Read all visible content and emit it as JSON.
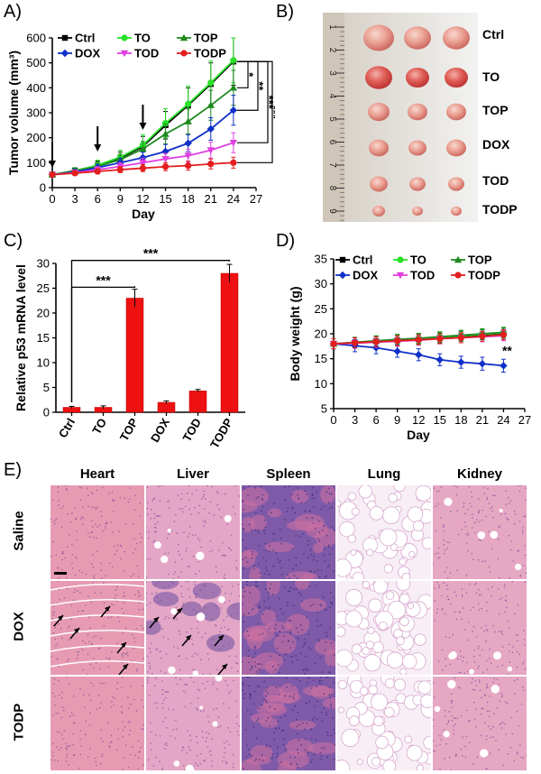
{
  "panel_labels": {
    "a": "A)",
    "b": "B)",
    "c": "C)",
    "d": "D)",
    "e": "E)"
  },
  "colors": {
    "Ctrl": "#000000",
    "TO": "#27e027",
    "TOP": "#1f8a1f",
    "DOX": "#1030c8",
    "TOD": "#e040e0",
    "TODP": "#e21e1e",
    "bar": "#ee1111"
  },
  "chart_data": [
    {
      "type": "line",
      "ylabel": "Tumor volume (mm³)",
      "xlabel": "Day",
      "x": [
        0,
        3,
        6,
        9,
        12,
        15,
        18,
        21,
        24
      ],
      "xticks": [
        "0",
        "3",
        "6",
        "9",
        "12",
        "15",
        "18",
        "21",
        "24",
        "27"
      ],
      "xlim": [
        0,
        27
      ],
      "yticks": [
        "0",
        "100",
        "200",
        "300",
        "400",
        "500",
        "600"
      ],
      "ylim": [
        0,
        600
      ],
      "legend": [
        "Ctrl",
        "TO",
        "TOP",
        "DOX",
        "TOD",
        "TODP"
      ],
      "series": [
        {
          "name": "Ctrl",
          "values": [
            52,
            68,
            88,
            118,
            165,
            250,
            330,
            415,
            505
          ],
          "err": [
            10,
            12,
            18,
            25,
            40,
            55,
            70,
            85,
            95
          ]
        },
        {
          "name": "TO",
          "values": [
            53,
            67,
            90,
            122,
            170,
            258,
            335,
            420,
            510
          ],
          "err": [
            10,
            12,
            20,
            28,
            42,
            58,
            72,
            88,
            90
          ]
        },
        {
          "name": "TOP",
          "values": [
            52,
            65,
            85,
            112,
            155,
            215,
            265,
            330,
            400
          ],
          "err": [
            10,
            12,
            18,
            22,
            30,
            40,
            50,
            60,
            70
          ]
        },
        {
          "name": "DOX",
          "values": [
            52,
            63,
            80,
            100,
            120,
            145,
            178,
            235,
            310
          ],
          "err": [
            8,
            10,
            14,
            18,
            22,
            28,
            34,
            45,
            60
          ]
        },
        {
          "name": "TOD",
          "values": [
            52,
            60,
            72,
            85,
            100,
            115,
            128,
            150,
            180
          ],
          "err": [
            8,
            10,
            12,
            14,
            18,
            22,
            26,
            32,
            40
          ]
        },
        {
          "name": "TODP",
          "values": [
            52,
            58,
            65,
            72,
            78,
            84,
            88,
            95,
            100
          ],
          "err": [
            6,
            8,
            10,
            12,
            14,
            16,
            18,
            20,
            22
          ]
        }
      ],
      "arrows_at_day": [
        0,
        6,
        12
      ],
      "significance": [
        "*",
        "**",
        "***",
        "***"
      ]
    },
    {
      "type": "bar",
      "ylabel": "Relative p53 mRNA level",
      "categories": [
        "Ctrl",
        "TO",
        "TOP",
        "DOX",
        "TOD",
        "TODP"
      ],
      "values": [
        1.0,
        1.0,
        23.0,
        2.0,
        4.3,
        28.0
      ],
      "err": [
        0.2,
        0.3,
        1.8,
        0.3,
        0.3,
        1.8
      ],
      "yticks": [
        "0",
        "5",
        "10",
        "15",
        "20",
        "25",
        "30"
      ],
      "ylim": [
        0,
        30
      ],
      "significance": [
        {
          "from": "Ctrl",
          "to": "TOP",
          "label": "***"
        },
        {
          "from": "Ctrl",
          "to": "TODP",
          "label": "***"
        }
      ]
    },
    {
      "type": "line",
      "ylabel": "Body weight (g)",
      "xlabel": "Day",
      "x": [
        0,
        3,
        6,
        9,
        12,
        15,
        18,
        21,
        24
      ],
      "xticks": [
        "0",
        "3",
        "6",
        "9",
        "12",
        "15",
        "18",
        "21",
        "24",
        "27"
      ],
      "xlim": [
        0,
        27
      ],
      "yticks": [
        "5",
        "10",
        "15",
        "20",
        "25",
        "30",
        "35"
      ],
      "ylim": [
        5,
        35
      ],
      "legend": [
        "Ctrl",
        "TO",
        "TOP",
        "DOX",
        "TOD",
        "TODP"
      ],
      "series": [
        {
          "name": "Ctrl",
          "values": [
            18.0,
            18.2,
            18.5,
            18.7,
            18.9,
            19.2,
            19.5,
            19.8,
            20.1
          ],
          "err": [
            1,
            1,
            1,
            1,
            1,
            1,
            1,
            1,
            1
          ]
        },
        {
          "name": "TO",
          "values": [
            18.0,
            18.2,
            18.5,
            18.7,
            19.0,
            19.3,
            19.6,
            19.9,
            20.2
          ],
          "err": [
            1,
            1,
            1,
            1,
            1,
            1,
            1,
            1,
            1
          ]
        },
        {
          "name": "TOP",
          "values": [
            18.0,
            18.3,
            18.6,
            18.9,
            19.1,
            19.4,
            19.7,
            20.0,
            20.3
          ],
          "err": [
            1,
            1,
            1,
            1,
            1,
            1,
            1,
            1,
            1
          ]
        },
        {
          "name": "DOX",
          "values": [
            18.0,
            17.6,
            17.2,
            16.5,
            15.8,
            14.8,
            14.3,
            14.0,
            13.6
          ],
          "err": [
            1,
            1.2,
            1.2,
            1.2,
            1.2,
            1.2,
            1.2,
            1.3,
            1.3
          ]
        },
        {
          "name": "TOD",
          "values": [
            18.0,
            18.1,
            18.3,
            18.5,
            18.7,
            19.0,
            19.2,
            19.4,
            19.6
          ],
          "err": [
            1,
            1,
            1,
            1,
            1,
            1,
            1,
            1,
            1
          ]
        },
        {
          "name": "TODP",
          "values": [
            18.0,
            18.2,
            18.4,
            18.6,
            18.8,
            19.0,
            19.2,
            19.5,
            19.8
          ],
          "err": [
            1,
            1,
            1,
            1,
            1,
            1,
            1,
            1,
            1
          ]
        }
      ],
      "significance": [
        "**"
      ]
    }
  ],
  "panel_b": {
    "row_labels": [
      "Ctrl",
      "TO",
      "TOP",
      "DOX",
      "TOD",
      "TODP"
    ],
    "ruler_ticks": [
      "1",
      "2",
      "3",
      "4",
      "5",
      "6",
      "7",
      "8",
      "9"
    ]
  },
  "panel_e": {
    "columns": [
      "Heart",
      "Liver",
      "Spleen",
      "Lung",
      "Kidney"
    ],
    "rows": [
      "Saline",
      "DOX",
      "TODP"
    ]
  }
}
